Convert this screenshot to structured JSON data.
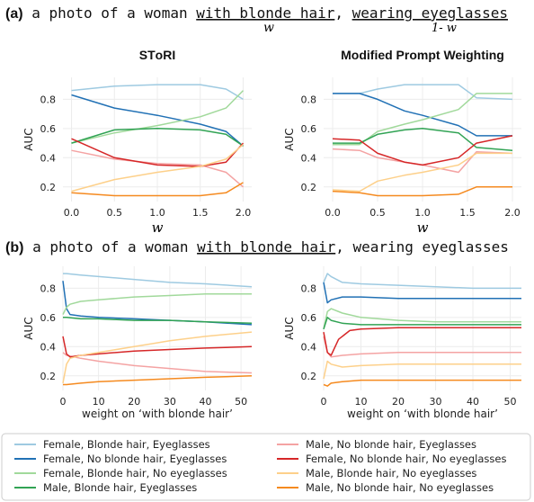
{
  "headers": {
    "a": {
      "tag": "(a)",
      "pre": " a photo of a woman ",
      "u1": "with blonde hair",
      "mid": ", ",
      "u2": "wearing eyeglasses",
      "w1": "w",
      "w2": "1- w"
    },
    "b": {
      "tag": "(b)",
      "pre": " a photo of a woman ",
      "u1": "with blonde hair",
      "post": ", wearing eyeglasses"
    }
  },
  "legend": [
    {
      "label": "Female, Blonde hair, Eyeglasses",
      "color": "#9ecae1"
    },
    {
      "label": "Female, No blonde hair, Eyeglasses",
      "color": "#2171b5"
    },
    {
      "label": "Female, Blonde hair, No eyeglasses",
      "color": "#a1d99b"
    },
    {
      "label": "Male, Blonde hair, Eyeglasses",
      "color": "#31a354"
    },
    {
      "label": "Male, No blonde hair, Eyeglasses",
      "color": "#f4a3a3"
    },
    {
      "label": "Female, No blonde hair, No eyeglasses",
      "color": "#d62728"
    },
    {
      "label": "Male, Blonde hair, No eyeglasses",
      "color": "#fdd08a"
    },
    {
      "label": "Male, No blonde hair, No eyeglasses",
      "color": "#f58a1f"
    }
  ],
  "chart_data": [
    {
      "type": "line",
      "title": "STоRI",
      "xlabel": "w",
      "ylabel": "AUC",
      "xlim": [
        -0.1,
        2.1
      ],
      "ylim": [
        0.1,
        0.95
      ],
      "xticks": [
        "0.0",
        "0.5",
        "1.0",
        "1.5",
        "2.0"
      ],
      "xtick_values": [
        0,
        0.5,
        1,
        1.5,
        2
      ],
      "yticks": [
        "0.2",
        "0.4",
        "0.6",
        "0.8"
      ],
      "ytick_values": [
        0.2,
        0.4,
        0.6,
        0.8
      ],
      "grid": true,
      "series": [
        {
          "color": "#9ecae1",
          "x": [
            0,
            0.5,
            1.0,
            1.5,
            1.8,
            2.0
          ],
          "y": [
            0.86,
            0.89,
            0.9,
            0.9,
            0.87,
            0.8
          ]
        },
        {
          "color": "#2171b5",
          "x": [
            0,
            0.5,
            1.0,
            1.5,
            1.8,
            2.0
          ],
          "y": [
            0.83,
            0.74,
            0.69,
            0.63,
            0.58,
            0.48
          ]
        },
        {
          "color": "#a1d99b",
          "x": [
            0,
            0.5,
            1.0,
            1.5,
            1.8,
            2.0
          ],
          "y": [
            0.5,
            0.57,
            0.62,
            0.68,
            0.74,
            0.86
          ]
        },
        {
          "color": "#31a354",
          "x": [
            0,
            0.5,
            1.0,
            1.5,
            1.8,
            2.0
          ],
          "y": [
            0.5,
            0.59,
            0.6,
            0.59,
            0.56,
            0.48
          ]
        },
        {
          "color": "#f4a3a3",
          "x": [
            0,
            0.5,
            1.0,
            1.5,
            1.8,
            2.0
          ],
          "y": [
            0.45,
            0.39,
            0.36,
            0.35,
            0.3,
            0.2
          ]
        },
        {
          "color": "#d62728",
          "x": [
            0,
            0.5,
            1.0,
            1.5,
            1.8,
            2.0
          ],
          "y": [
            0.53,
            0.4,
            0.35,
            0.34,
            0.37,
            0.5
          ]
        },
        {
          "color": "#fdd08a",
          "x": [
            0,
            0.5,
            1.0,
            1.5,
            1.8,
            2.0
          ],
          "y": [
            0.17,
            0.25,
            0.3,
            0.34,
            0.39,
            0.49
          ]
        },
        {
          "color": "#f58a1f",
          "x": [
            0,
            0.5,
            1.0,
            1.5,
            1.8,
            2.0
          ],
          "y": [
            0.16,
            0.14,
            0.14,
            0.14,
            0.16,
            0.23
          ]
        }
      ]
    },
    {
      "type": "line",
      "title": "Modified Prompt Weighting",
      "xlabel": "w",
      "ylabel": "AUC",
      "xlim": [
        -0.1,
        2.1
      ],
      "ylim": [
        0.1,
        0.95
      ],
      "xticks": [
        "0.0",
        "0.5",
        "1.0",
        "1.5",
        "2.0"
      ],
      "xtick_values": [
        0,
        0.5,
        1,
        1.5,
        2
      ],
      "yticks": [
        "0.2",
        "0.4",
        "0.6",
        "0.8"
      ],
      "ytick_values": [
        0.2,
        0.4,
        0.6,
        0.8
      ],
      "grid": true,
      "series": [
        {
          "color": "#9ecae1",
          "x": [
            0,
            0.3,
            0.5,
            0.8,
            1.0,
            1.4,
            1.6,
            2.0
          ],
          "y": [
            0.84,
            0.84,
            0.87,
            0.9,
            0.9,
            0.9,
            0.81,
            0.8
          ]
        },
        {
          "color": "#2171b5",
          "x": [
            0,
            0.3,
            0.5,
            0.8,
            1.0,
            1.4,
            1.6,
            2.0
          ],
          "y": [
            0.84,
            0.84,
            0.8,
            0.72,
            0.69,
            0.62,
            0.55,
            0.55
          ]
        },
        {
          "color": "#a1d99b",
          "x": [
            0,
            0.3,
            0.5,
            0.8,
            1.0,
            1.4,
            1.6,
            2.0
          ],
          "y": [
            0.49,
            0.49,
            0.58,
            0.63,
            0.66,
            0.73,
            0.84,
            0.84
          ]
        },
        {
          "color": "#31a354",
          "x": [
            0,
            0.3,
            0.5,
            0.8,
            1.0,
            1.4,
            1.6,
            2.0
          ],
          "y": [
            0.5,
            0.5,
            0.56,
            0.59,
            0.6,
            0.57,
            0.47,
            0.45
          ]
        },
        {
          "color": "#f4a3a3",
          "x": [
            0,
            0.3,
            0.5,
            0.8,
            1.0,
            1.4,
            1.6,
            2.0
          ],
          "y": [
            0.46,
            0.45,
            0.4,
            0.37,
            0.35,
            0.3,
            0.44,
            0.43
          ]
        },
        {
          "color": "#d62728",
          "x": [
            0,
            0.3,
            0.5,
            0.8,
            1.0,
            1.4,
            1.6,
            2.0
          ],
          "y": [
            0.53,
            0.52,
            0.43,
            0.37,
            0.35,
            0.4,
            0.5,
            0.55
          ]
        },
        {
          "color": "#fdd08a",
          "x": [
            0,
            0.3,
            0.5,
            0.8,
            1.0,
            1.4,
            1.6,
            2.0
          ],
          "y": [
            0.18,
            0.17,
            0.24,
            0.28,
            0.3,
            0.35,
            0.43,
            0.43
          ]
        },
        {
          "color": "#f58a1f",
          "x": [
            0,
            0.3,
            0.5,
            0.8,
            1.0,
            1.4,
            1.6,
            2.0
          ],
          "y": [
            0.17,
            0.16,
            0.14,
            0.14,
            0.14,
            0.15,
            0.2,
            0.2
          ]
        }
      ]
    },
    {
      "type": "line",
      "title": "",
      "xlabel": "weight on ‘with blonde hair’",
      "ylabel": "AUC",
      "xlim": [
        0,
        53
      ],
      "ylim": [
        0.1,
        0.95
      ],
      "xticks": [
        "0",
        "10",
        "20",
        "30",
        "40",
        "50"
      ],
      "xtick_values": [
        0,
        10,
        20,
        30,
        40,
        50
      ],
      "yticks": [
        "0.2",
        "0.4",
        "0.6",
        "0.8"
      ],
      "ytick_values": [
        0.2,
        0.4,
        0.6,
        0.8
      ],
      "grid": true,
      "series": [
        {
          "color": "#9ecae1",
          "x": [
            0,
            1,
            5,
            10,
            20,
            30,
            40,
            53
          ],
          "y": [
            0.9,
            0.9,
            0.89,
            0.88,
            0.86,
            0.84,
            0.83,
            0.81
          ]
        },
        {
          "color": "#2171b5",
          "x": [
            0,
            1,
            2,
            5,
            10,
            20,
            30,
            40,
            53
          ],
          "y": [
            0.85,
            0.66,
            0.62,
            0.61,
            0.6,
            0.59,
            0.58,
            0.57,
            0.55
          ]
        },
        {
          "color": "#a1d99b",
          "x": [
            0,
            1,
            2,
            5,
            10,
            20,
            30,
            40,
            53
          ],
          "y": [
            0.62,
            0.67,
            0.69,
            0.71,
            0.72,
            0.74,
            0.75,
            0.76,
            0.76
          ]
        },
        {
          "color": "#31a354",
          "x": [
            0,
            1,
            5,
            10,
            20,
            30,
            40,
            53
          ],
          "y": [
            0.6,
            0.6,
            0.59,
            0.59,
            0.58,
            0.58,
            0.57,
            0.56
          ]
        },
        {
          "color": "#f4a3a3",
          "x": [
            0,
            1,
            5,
            10,
            20,
            30,
            40,
            53
          ],
          "y": [
            0.36,
            0.34,
            0.32,
            0.3,
            0.27,
            0.25,
            0.23,
            0.22
          ]
        },
        {
          "color": "#d62728",
          "x": [
            0,
            1,
            2,
            5,
            10,
            20,
            30,
            40,
            53
          ],
          "y": [
            0.47,
            0.35,
            0.33,
            0.34,
            0.35,
            0.37,
            0.38,
            0.39,
            0.4
          ]
        },
        {
          "color": "#fdd08a",
          "x": [
            0,
            1,
            2,
            5,
            10,
            20,
            30,
            40,
            53
          ],
          "y": [
            0.15,
            0.28,
            0.32,
            0.34,
            0.36,
            0.4,
            0.44,
            0.47,
            0.5
          ]
        },
        {
          "color": "#f58a1f",
          "x": [
            0,
            1,
            5,
            10,
            20,
            30,
            40,
            53
          ],
          "y": [
            0.14,
            0.14,
            0.15,
            0.16,
            0.17,
            0.18,
            0.19,
            0.2
          ]
        }
      ]
    },
    {
      "type": "line",
      "title": "",
      "xlabel": "weight on ‘with blonde hair’",
      "ylabel": "AUC",
      "xlim": [
        0,
        53
      ],
      "ylim": [
        0.1,
        0.95
      ],
      "xticks": [
        "0",
        "10",
        "20",
        "30",
        "40",
        "50"
      ],
      "xtick_values": [
        0,
        10,
        20,
        30,
        40,
        50
      ],
      "yticks": [
        "0.2",
        "0.4",
        "0.6",
        "0.8"
      ],
      "ytick_values": [
        0.2,
        0.4,
        0.6,
        0.8
      ],
      "grid": true,
      "series": [
        {
          "color": "#9ecae1",
          "x": [
            0,
            1,
            2,
            5,
            10,
            20,
            30,
            40,
            53
          ],
          "y": [
            0.84,
            0.9,
            0.88,
            0.84,
            0.83,
            0.82,
            0.81,
            0.8,
            0.8
          ]
        },
        {
          "color": "#2171b5",
          "x": [
            0,
            1,
            2,
            5,
            10,
            20,
            30,
            40,
            53
          ],
          "y": [
            0.84,
            0.7,
            0.72,
            0.74,
            0.74,
            0.73,
            0.73,
            0.73,
            0.73
          ]
        },
        {
          "color": "#a1d99b",
          "x": [
            0,
            1,
            2,
            5,
            10,
            20,
            30,
            40,
            53
          ],
          "y": [
            0.52,
            0.64,
            0.66,
            0.63,
            0.6,
            0.58,
            0.57,
            0.57,
            0.57
          ]
        },
        {
          "color": "#31a354",
          "x": [
            0,
            1,
            2,
            5,
            10,
            20,
            30,
            40,
            53
          ],
          "y": [
            0.52,
            0.6,
            0.58,
            0.56,
            0.55,
            0.55,
            0.55,
            0.55,
            0.55
          ]
        },
        {
          "color": "#f4a3a3",
          "x": [
            0,
            1,
            2,
            5,
            10,
            20,
            30,
            40,
            53
          ],
          "y": [
            0.47,
            0.36,
            0.33,
            0.34,
            0.35,
            0.36,
            0.36,
            0.36,
            0.36
          ]
        },
        {
          "color": "#d62728",
          "x": [
            0,
            1,
            2,
            4,
            7,
            10,
            20,
            30,
            40,
            53
          ],
          "y": [
            0.5,
            0.36,
            0.34,
            0.45,
            0.51,
            0.52,
            0.53,
            0.53,
            0.53,
            0.53
          ]
        },
        {
          "color": "#fdd08a",
          "x": [
            0,
            1,
            2,
            5,
            10,
            20,
            30,
            40,
            53
          ],
          "y": [
            0.18,
            0.3,
            0.28,
            0.26,
            0.27,
            0.28,
            0.28,
            0.28,
            0.28
          ]
        },
        {
          "color": "#f58a1f",
          "x": [
            0,
            1,
            2,
            5,
            10,
            20,
            30,
            40,
            53
          ],
          "y": [
            0.14,
            0.13,
            0.15,
            0.16,
            0.17,
            0.17,
            0.17,
            0.17,
            0.17
          ]
        }
      ]
    }
  ]
}
